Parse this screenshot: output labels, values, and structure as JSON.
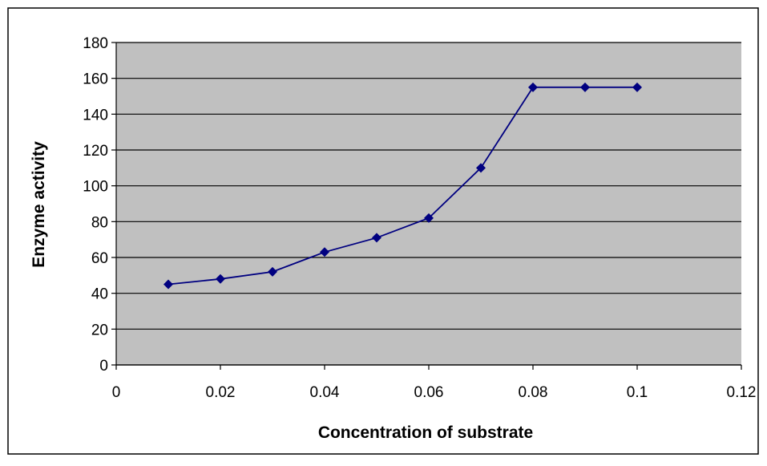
{
  "chart_data": {
    "type": "line",
    "title": "",
    "xlabel": "Concentration of substrate",
    "ylabel": "Enzyme activity",
    "xlim": [
      0,
      0.12
    ],
    "ylim": [
      0,
      180
    ],
    "x_ticks": [
      "0",
      "0.02",
      "0.04",
      "0.06",
      "0.08",
      "0.1",
      "0.12"
    ],
    "y_ticks": [
      "0",
      "20",
      "40",
      "60",
      "80",
      "100",
      "120",
      "140",
      "160",
      "180"
    ],
    "grid": "horizontal",
    "legend": "none",
    "series": [
      {
        "x": [
          0.01,
          0.02,
          0.03,
          0.04,
          0.05,
          0.06,
          0.07,
          0.08,
          0.09,
          0.1
        ],
        "y": [
          45,
          48,
          52,
          63,
          71,
          82,
          110,
          155,
          155,
          155
        ]
      }
    ],
    "colors": {
      "plot_background": "#c0c0c0",
      "series": "#000080",
      "gridline": "#000000"
    }
  }
}
